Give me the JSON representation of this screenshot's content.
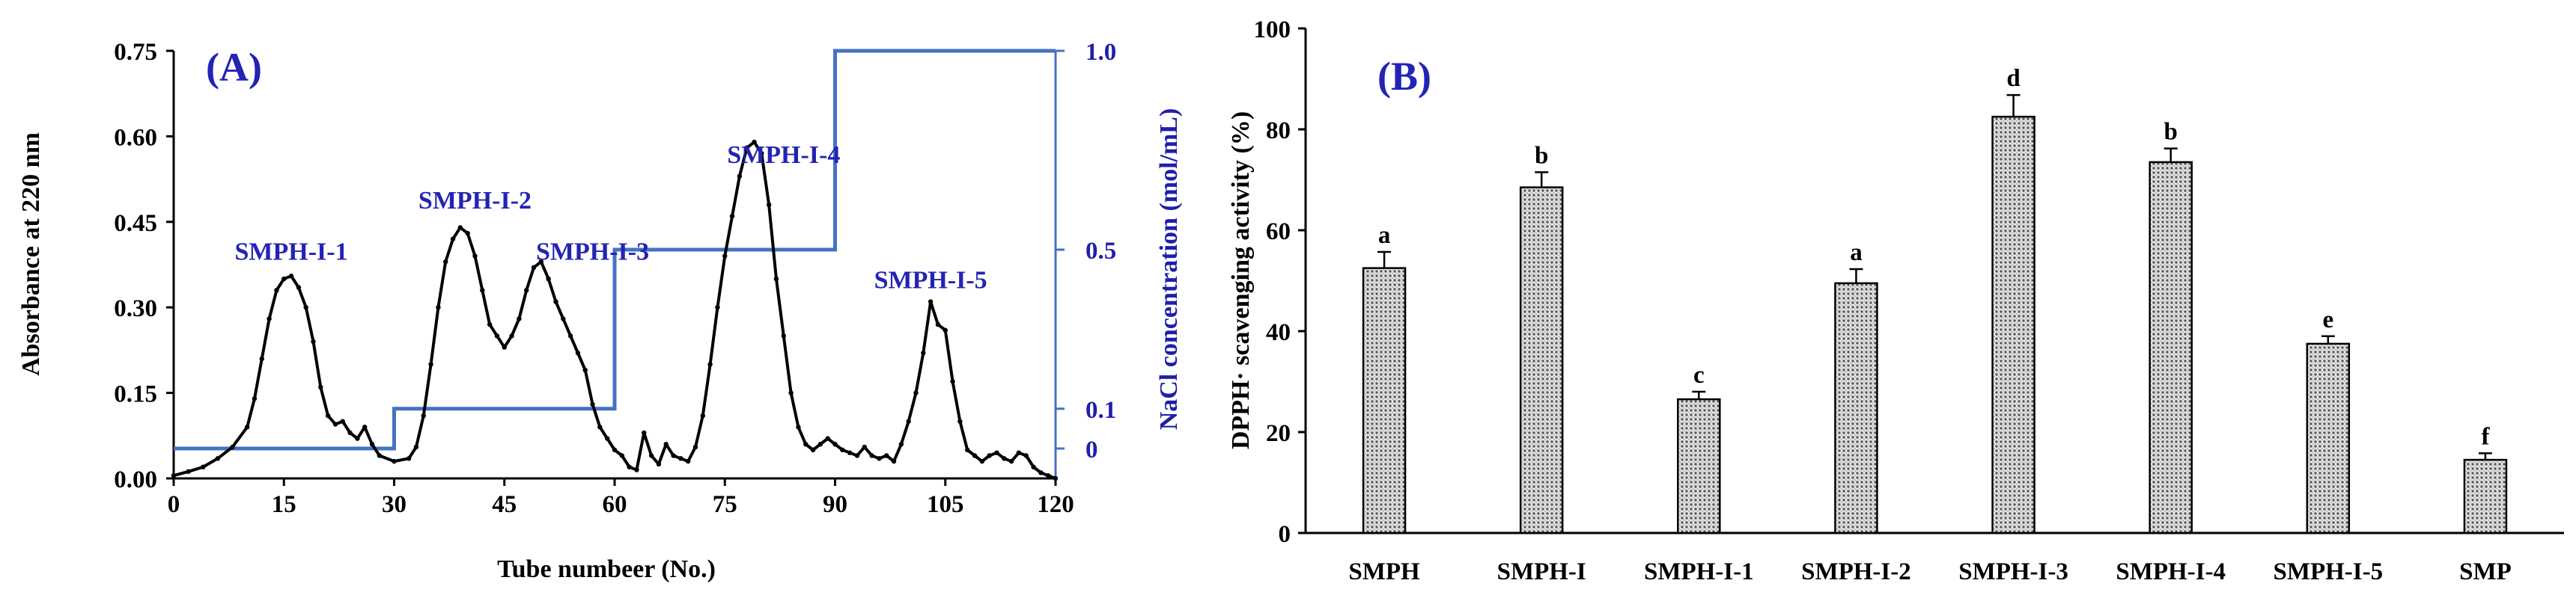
{
  "chart_data": [
    {
      "type": "line",
      "panel_label": "(A)",
      "xlabel": "Tube numbeer (No.)",
      "ylabel": "Absorbance at 220 nm",
      "y2label": "NaCl concentration (mol/mL)",
      "xlim": [
        0,
        120
      ],
      "ylim": [
        0,
        0.75
      ],
      "x_ticks": [
        "0",
        "15",
        "30",
        "45",
        "60",
        "75",
        "90",
        "105",
        "120"
      ],
      "y_ticks": [
        "0.00",
        "0.15",
        "0.30",
        "0.45",
        "0.60",
        "0.75"
      ],
      "y2_ticks": [
        "0",
        "0.1",
        "0.5",
        "1.0"
      ],
      "series": [
        {
          "name": "Absorbance",
          "color": "#000000",
          "x": [
            0,
            2,
            4,
            6,
            8,
            10,
            11,
            12,
            13,
            14,
            15,
            16,
            17,
            18,
            19,
            20,
            21,
            22,
            23,
            24,
            25,
            26,
            27,
            28,
            30,
            32,
            33,
            34,
            35,
            36,
            37,
            38,
            39,
            40,
            41,
            42,
            43,
            44,
            45,
            46,
            47,
            48,
            49,
            50,
            51,
            52,
            53,
            54,
            55,
            56,
            57,
            58,
            59,
            60,
            61,
            62,
            63,
            64,
            65,
            66,
            67,
            68,
            69,
            70,
            71,
            72,
            73,
            74,
            75,
            76,
            77,
            78,
            79,
            80,
            81,
            82,
            83,
            84,
            85,
            86,
            87,
            88,
            89,
            90,
            91,
            92,
            93,
            94,
            95,
            96,
            97,
            98,
            99,
            100,
            101,
            102,
            103,
            104,
            105,
            106,
            107,
            108,
            109,
            110,
            111,
            112,
            113,
            114,
            115,
            116,
            117,
            118,
            119,
            120
          ],
          "values": [
            0.005,
            0.012,
            0.02,
            0.035,
            0.055,
            0.09,
            0.14,
            0.21,
            0.28,
            0.33,
            0.35,
            0.355,
            0.335,
            0.3,
            0.24,
            0.16,
            0.11,
            0.095,
            0.1,
            0.08,
            0.07,
            0.09,
            0.06,
            0.04,
            0.03,
            0.035,
            0.055,
            0.11,
            0.2,
            0.3,
            0.38,
            0.42,
            0.44,
            0.43,
            0.39,
            0.33,
            0.27,
            0.25,
            0.23,
            0.25,
            0.28,
            0.33,
            0.37,
            0.38,
            0.35,
            0.31,
            0.28,
            0.25,
            0.22,
            0.19,
            0.13,
            0.09,
            0.07,
            0.05,
            0.04,
            0.02,
            0.015,
            0.08,
            0.04,
            0.025,
            0.06,
            0.04,
            0.035,
            0.03,
            0.055,
            0.11,
            0.2,
            0.3,
            0.39,
            0.46,
            0.53,
            0.58,
            0.59,
            0.57,
            0.48,
            0.35,
            0.25,
            0.15,
            0.09,
            0.06,
            0.05,
            0.06,
            0.07,
            0.06,
            0.05,
            0.045,
            0.04,
            0.055,
            0.04,
            0.035,
            0.04,
            0.03,
            0.06,
            0.1,
            0.15,
            0.22,
            0.31,
            0.27,
            0.26,
            0.17,
            0.1,
            0.05,
            0.04,
            0.03,
            0.04,
            0.045,
            0.035,
            0.03,
            0.045,
            0.04,
            0.02,
            0.01,
            0.005,
            0.0
          ]
        },
        {
          "name": "NaCl concentration",
          "color": "#4472c4",
          "axis": "right",
          "x": [
            0,
            30,
            30,
            60,
            60,
            90,
            90,
            120
          ],
          "values": [
            0,
            0,
            0.1,
            0.1,
            0.5,
            0.5,
            1.0,
            1.0
          ]
        }
      ],
      "annotations": [
        {
          "text": "SMPH-I-1",
          "x": 16,
          "y": 0.36
        },
        {
          "text": "SMPH-I-2",
          "x": 41,
          "y": 0.45
        },
        {
          "text": "SMPH-I-3",
          "x": 57,
          "y": 0.36
        },
        {
          "text": "SMPH-I-4",
          "x": 83,
          "y": 0.53
        },
        {
          "text": "SMPH-I-5",
          "x": 103,
          "y": 0.31
        }
      ]
    },
    {
      "type": "bar",
      "panel_label": "(B)",
      "xlabel": "",
      "ylabel": "DPPH· scavenging activity (%)",
      "ylim": [
        0,
        100
      ],
      "y_ticks": [
        "0",
        "20",
        "40",
        "60",
        "80",
        "100"
      ],
      "categories": [
        "SMPH",
        "SMPH-I",
        "SMPH-I-1",
        "SMPH-I-2",
        "SMPH-I-3",
        "SMPH-I-4",
        "SMPH-I-5",
        "SMP"
      ],
      "values": [
        52.5,
        68.5,
        26.5,
        49.5,
        82.5,
        73.5,
        37.5,
        14.5
      ],
      "errors": [
        3.2,
        3.0,
        1.5,
        2.8,
        4.3,
        2.7,
        1.5,
        1.3
      ],
      "letters": [
        "a",
        "b",
        "c",
        "a",
        "d",
        "b",
        "e",
        "f"
      ],
      "bar_color": "#8a8a8a"
    }
  ]
}
